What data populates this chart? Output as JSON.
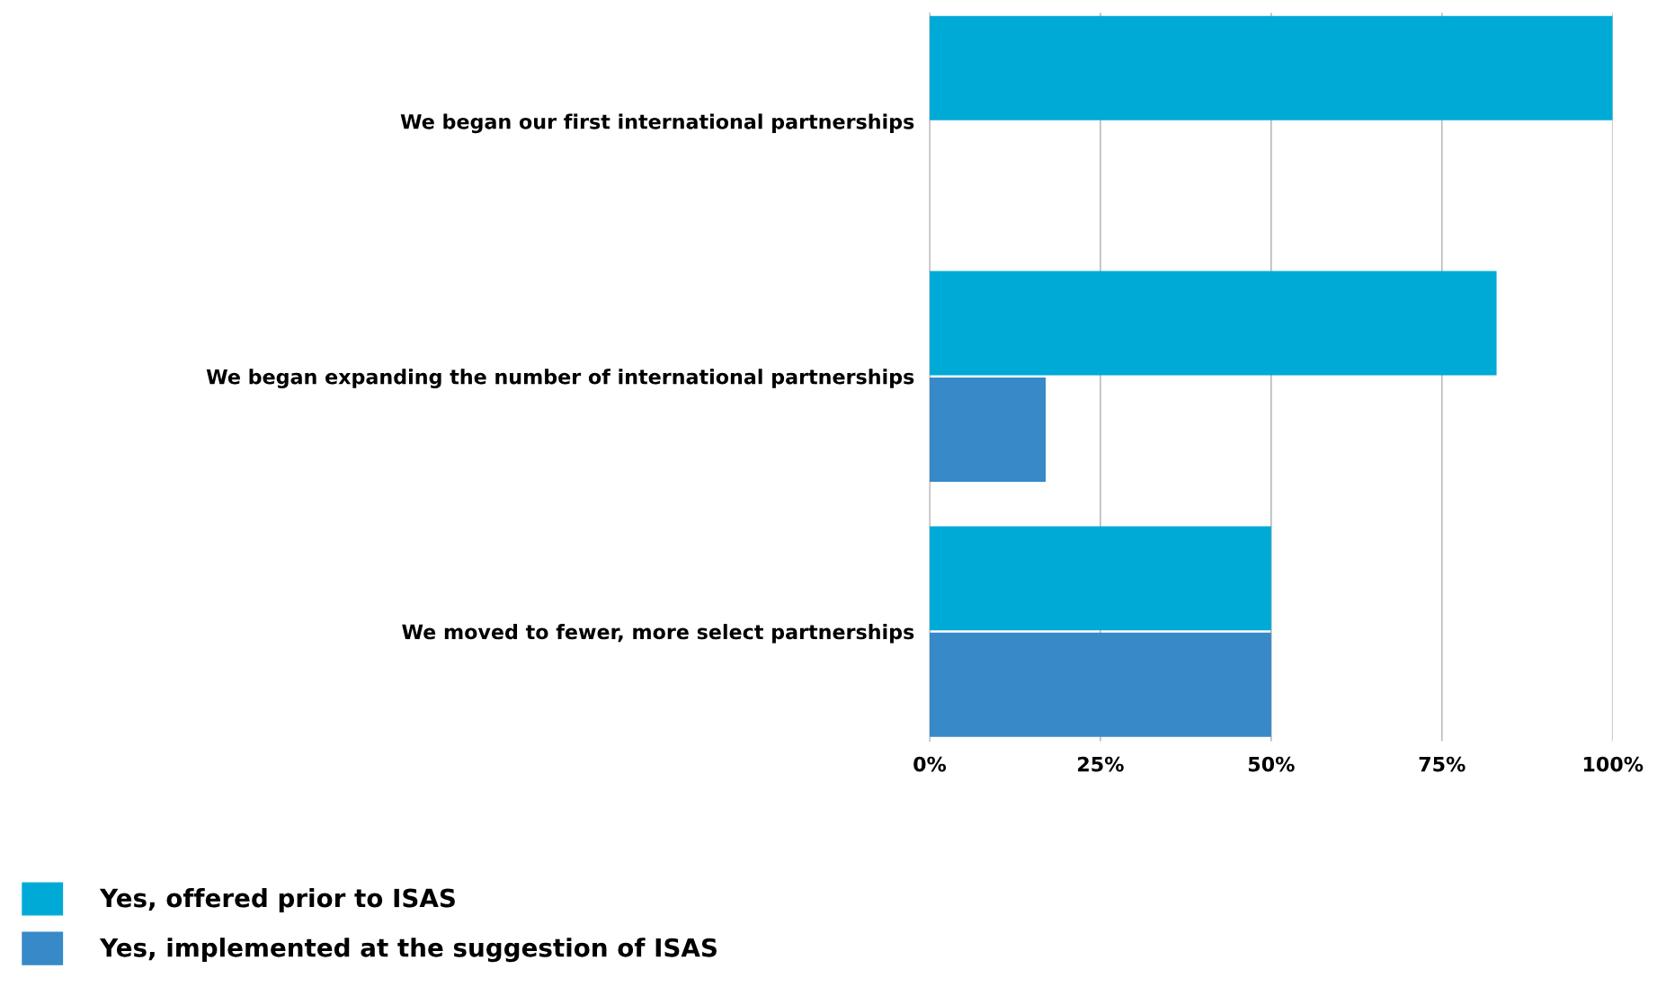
{
  "chart_data": {
    "type": "bar",
    "orientation": "horizontal",
    "categories": [
      "We began our first international partnerships",
      "We began expanding the number of international partnerships",
      "We moved to fewer, more select partnerships"
    ],
    "series": [
      {
        "name": "Yes, offered prior to ISAS",
        "color": "#00aad6",
        "values": [
          100,
          83,
          50
        ]
      },
      {
        "name": "Yes, implemented at the suggestion of ISAS",
        "color": "#3789c8",
        "values": [
          null,
          17,
          50
        ]
      }
    ],
    "xlim": [
      0,
      100
    ],
    "xticks": [
      {
        "value": 0,
        "label": "0%"
      },
      {
        "value": 25,
        "label": "25%"
      },
      {
        "value": 50,
        "label": "50%"
      },
      {
        "value": 75,
        "label": "75%"
      },
      {
        "value": 100,
        "label": "100%"
      }
    ],
    "grid": "x",
    "legend": "bottom left"
  }
}
